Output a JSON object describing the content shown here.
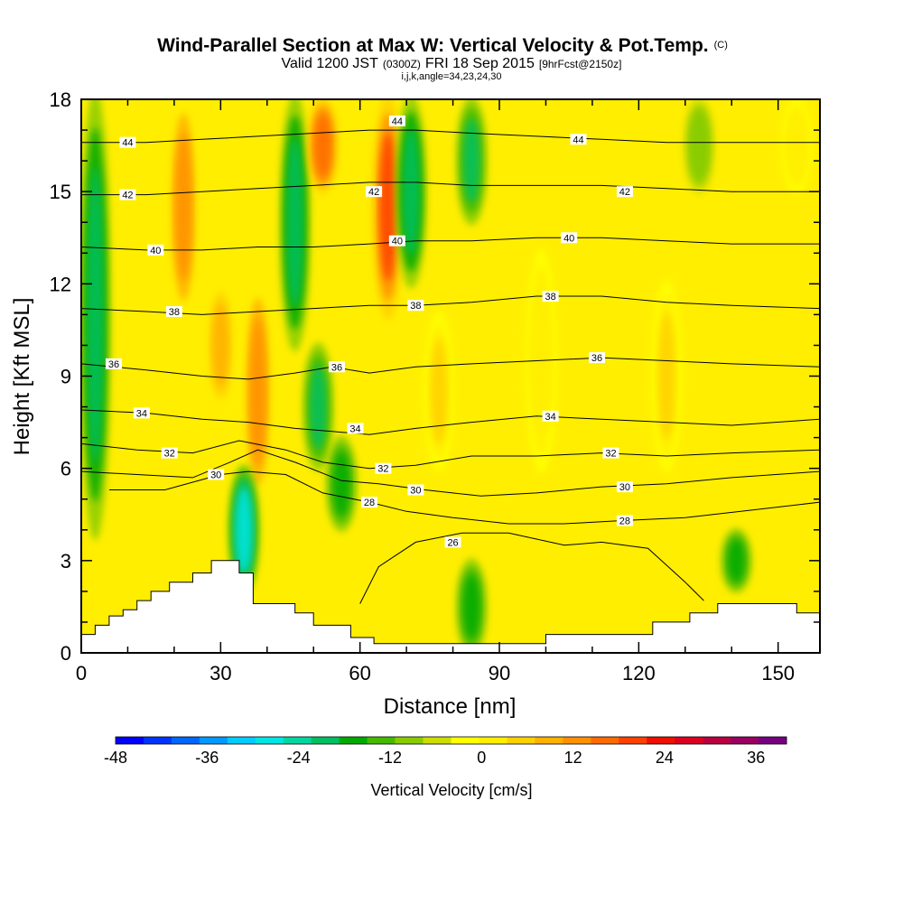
{
  "chart_data": {
    "type": "heatmap",
    "title": "Wind-Parallel Section at Max W: Vertical Velocity & Pot.Temp.",
    "title_mark": "(C)",
    "subtitle": {
      "valid": "Valid 1200 JST",
      "utc": "(0300Z)",
      "date": "FRI 18 Sep 2015",
      "forecast": "[9hrFcst@2150z]",
      "params": "i,j,k,angle=34,23,24,30"
    },
    "xlabel": "Distance [nm]",
    "ylabel": "Height [Kft MSL]",
    "xlim": [
      0,
      159
    ],
    "ylim": [
      0,
      18
    ],
    "x_ticks": [
      0,
      30,
      60,
      90,
      120,
      150
    ],
    "y_ticks": [
      0,
      3,
      6,
      9,
      12,
      15,
      18
    ],
    "colorbar": {
      "title": "Vertical Velocity [cm/s]",
      "min": -48,
      "max": 40,
      "step": 4,
      "tick_values": [
        -48,
        -36,
        -24,
        -12,
        0,
        12,
        24,
        36
      ],
      "colors": [
        "#0000ff",
        "#0033ff",
        "#0066ff",
        "#0099ff",
        "#00ccff",
        "#00e5e5",
        "#00d7a0",
        "#00c060",
        "#00aa00",
        "#44bb00",
        "#88cc00",
        "#ccdd00",
        "#ffff00",
        "#ffee00",
        "#ffd000",
        "#ffb000",
        "#ff9000",
        "#ff6a00",
        "#ff4000",
        "#ee1000",
        "#dd0020",
        "#bb0040",
        "#990060",
        "#770080"
      ]
    },
    "velocity_features": [
      {
        "x": 3,
        "z0": 4,
        "z1": 18,
        "w": -20
      },
      {
        "x": 22,
        "z0": 11,
        "z1": 18,
        "w": 22
      },
      {
        "x": 30,
        "z0": 8,
        "z1": 12,
        "w": 14
      },
      {
        "x": 38,
        "z0": 5,
        "z1": 12,
        "w": 20
      },
      {
        "x": 35,
        "z0": 2,
        "z1": 6,
        "w": -30
      },
      {
        "x": 46,
        "z0": 10,
        "z1": 18,
        "w": -22
      },
      {
        "x": 51,
        "z0": 6,
        "z1": 10,
        "w": -18
      },
      {
        "x": 52,
        "z0": 15,
        "z1": 18,
        "w": 26
      },
      {
        "x": 56,
        "z0": 4,
        "z1": 7,
        "w": -16
      },
      {
        "x": 66,
        "z0": 11,
        "z1": 18,
        "w": 30
      },
      {
        "x": 71,
        "z0": 12,
        "z1": 18,
        "w": -20
      },
      {
        "x": 77,
        "z0": 6,
        "z1": 11,
        "w": 10
      },
      {
        "x": 84,
        "z0": 0,
        "z1": 3,
        "w": -16
      },
      {
        "x": 84,
        "z0": 14,
        "z1": 18,
        "w": -18
      },
      {
        "x": 99,
        "z0": 6,
        "z1": 13,
        "w": 8
      },
      {
        "x": 126,
        "z0": 6,
        "z1": 12,
        "w": 10
      },
      {
        "x": 133,
        "z0": 15,
        "z1": 18,
        "w": -8
      },
      {
        "x": 141,
        "z0": 2,
        "z1": 4,
        "w": -14
      },
      {
        "x": 154,
        "z0": 15,
        "z1": 18,
        "w": 8
      }
    ],
    "theta_contours": [
      {
        "label": "26",
        "points": [
          [
            60,
            1.6
          ],
          [
            64,
            2.8
          ],
          [
            72,
            3.6
          ],
          [
            82,
            3.9
          ],
          [
            92,
            3.9
          ],
          [
            104,
            3.5
          ],
          [
            112,
            3.6
          ],
          [
            122,
            3.4
          ],
          [
            130,
            2.3
          ],
          [
            134,
            1.7
          ]
        ]
      },
      {
        "label": "28",
        "points": [
          [
            6,
            5.3
          ],
          [
            18,
            5.3
          ],
          [
            30,
            5.8
          ],
          [
            36,
            5.9
          ],
          [
            44,
            5.8
          ],
          [
            52,
            5.2
          ],
          [
            62,
            4.9
          ],
          [
            70,
            4.6
          ],
          [
            80,
            4.4
          ],
          [
            92,
            4.2
          ],
          [
            104,
            4.2
          ],
          [
            116,
            4.3
          ],
          [
            130,
            4.4
          ],
          [
            142,
            4.6
          ],
          [
            159,
            4.9
          ]
        ]
      },
      {
        "label": "30",
        "points": [
          [
            0,
            5.9
          ],
          [
            12,
            5.8
          ],
          [
            24,
            5.7
          ],
          [
            32,
            6.2
          ],
          [
            38,
            6.6
          ],
          [
            46,
            6.2
          ],
          [
            56,
            5.6
          ],
          [
            64,
            5.5
          ],
          [
            74,
            5.3
          ],
          [
            86,
            5.1
          ],
          [
            98,
            5.2
          ],
          [
            112,
            5.4
          ],
          [
            126,
            5.5
          ],
          [
            140,
            5.7
          ],
          [
            159,
            5.9
          ]
        ]
      },
      {
        "label": "32",
        "points": [
          [
            0,
            6.8
          ],
          [
            12,
            6.6
          ],
          [
            24,
            6.5
          ],
          [
            34,
            6.9
          ],
          [
            44,
            6.6
          ],
          [
            52,
            6.2
          ],
          [
            62,
            6.0
          ],
          [
            72,
            6.1
          ],
          [
            84,
            6.4
          ],
          [
            98,
            6.4
          ],
          [
            112,
            6.5
          ],
          [
            126,
            6.4
          ],
          [
            140,
            6.5
          ],
          [
            159,
            6.6
          ]
        ]
      },
      {
        "label": "34",
        "points": [
          [
            0,
            7.9
          ],
          [
            14,
            7.8
          ],
          [
            26,
            7.6
          ],
          [
            36,
            7.5
          ],
          [
            46,
            7.3
          ],
          [
            54,
            7.2
          ],
          [
            62,
            7.1
          ],
          [
            72,
            7.3
          ],
          [
            84,
            7.5
          ],
          [
            98,
            7.7
          ],
          [
            112,
            7.6
          ],
          [
            126,
            7.5
          ],
          [
            140,
            7.4
          ],
          [
            159,
            7.6
          ]
        ]
      },
      {
        "label": "36",
        "points": [
          [
            0,
            9.4
          ],
          [
            14,
            9.2
          ],
          [
            26,
            9.0
          ],
          [
            36,
            8.9
          ],
          [
            46,
            9.1
          ],
          [
            54,
            9.3
          ],
          [
            62,
            9.1
          ],
          [
            72,
            9.3
          ],
          [
            84,
            9.4
          ],
          [
            98,
            9.5
          ],
          [
            112,
            9.6
          ],
          [
            126,
            9.5
          ],
          [
            140,
            9.4
          ],
          [
            159,
            9.3
          ]
        ]
      },
      {
        "label": "38",
        "points": [
          [
            0,
            11.2
          ],
          [
            14,
            11.1
          ],
          [
            26,
            11.0
          ],
          [
            38,
            11.1
          ],
          [
            50,
            11.2
          ],
          [
            62,
            11.3
          ],
          [
            72,
            11.3
          ],
          [
            84,
            11.4
          ],
          [
            98,
            11.6
          ],
          [
            112,
            11.6
          ],
          [
            126,
            11.4
          ],
          [
            140,
            11.3
          ],
          [
            159,
            11.2
          ]
        ]
      },
      {
        "label": "40",
        "points": [
          [
            0,
            13.2
          ],
          [
            14,
            13.1
          ],
          [
            26,
            13.1
          ],
          [
            38,
            13.2
          ],
          [
            50,
            13.2
          ],
          [
            62,
            13.3
          ],
          [
            72,
            13.4
          ],
          [
            84,
            13.4
          ],
          [
            98,
            13.5
          ],
          [
            112,
            13.5
          ],
          [
            126,
            13.4
          ],
          [
            140,
            13.3
          ],
          [
            159,
            13.3
          ]
        ]
      },
      {
        "label": "42",
        "points": [
          [
            0,
            14.9
          ],
          [
            14,
            14.9
          ],
          [
            26,
            15.0
          ],
          [
            38,
            15.1
          ],
          [
            50,
            15.2
          ],
          [
            62,
            15.3
          ],
          [
            72,
            15.3
          ],
          [
            84,
            15.2
          ],
          [
            98,
            15.2
          ],
          [
            112,
            15.2
          ],
          [
            126,
            15.1
          ],
          [
            140,
            15.0
          ],
          [
            159,
            15.0
          ]
        ]
      },
      {
        "label": "44",
        "points": [
          [
            0,
            16.6
          ],
          [
            14,
            16.6
          ],
          [
            26,
            16.7
          ],
          [
            38,
            16.8
          ],
          [
            50,
            16.9
          ],
          [
            62,
            17.0
          ],
          [
            72,
            17.0
          ],
          [
            84,
            16.9
          ],
          [
            98,
            16.8
          ],
          [
            112,
            16.7
          ],
          [
            126,
            16.6
          ],
          [
            140,
            16.6
          ],
          [
            159,
            16.6
          ]
        ]
      }
    ],
    "theta_label_positions": [
      {
        "label": "44",
        "x": 10,
        "z": 16.6
      },
      {
        "label": "44",
        "x": 68,
        "z": 17.3
      },
      {
        "label": "44",
        "x": 107,
        "z": 16.7
      },
      {
        "label": "42",
        "x": 10,
        "z": 14.9
      },
      {
        "label": "42",
        "x": 63,
        "z": 15.0
      },
      {
        "label": "42",
        "x": 117,
        "z": 15.0
      },
      {
        "label": "40",
        "x": 16,
        "z": 13.1
      },
      {
        "label": "40",
        "x": 68,
        "z": 13.4
      },
      {
        "label": "40",
        "x": 105,
        "z": 13.5
      },
      {
        "label": "38",
        "x": 20,
        "z": 11.1
      },
      {
        "label": "38",
        "x": 72,
        "z": 11.3
      },
      {
        "label": "38",
        "x": 101,
        "z": 11.6
      },
      {
        "label": "36",
        "x": 7,
        "z": 9.4
      },
      {
        "label": "36",
        "x": 55,
        "z": 9.3
      },
      {
        "label": "36",
        "x": 111,
        "z": 9.6
      },
      {
        "label": "34",
        "x": 13,
        "z": 7.8
      },
      {
        "label": "34",
        "x": 59,
        "z": 7.3
      },
      {
        "label": "34",
        "x": 101,
        "z": 7.7
      },
      {
        "label": "32",
        "x": 19,
        "z": 6.5
      },
      {
        "label": "32",
        "x": 65,
        "z": 6.0
      },
      {
        "label": "32",
        "x": 114,
        "z": 6.5
      },
      {
        "label": "30",
        "x": 29,
        "z": 5.8
      },
      {
        "label": "30",
        "x": 72,
        "z": 5.3
      },
      {
        "label": "30",
        "x": 117,
        "z": 5.4
      },
      {
        "label": "28",
        "x": 62,
        "z": 4.9
      },
      {
        "label": "28",
        "x": 117,
        "z": 4.3
      },
      {
        "label": "26",
        "x": 80,
        "z": 3.6
      }
    ],
    "terrain": [
      [
        0,
        0.6
      ],
      [
        3,
        0.6
      ],
      [
        3,
        0.9
      ],
      [
        6,
        0.9
      ],
      [
        6,
        1.2
      ],
      [
        9,
        1.2
      ],
      [
        9,
        1.4
      ],
      [
        12,
        1.4
      ],
      [
        12,
        1.7
      ],
      [
        15,
        1.7
      ],
      [
        15,
        2.0
      ],
      [
        19,
        2.0
      ],
      [
        19,
        2.3
      ],
      [
        24,
        2.3
      ],
      [
        24,
        2.6
      ],
      [
        28,
        2.6
      ],
      [
        28,
        3.0
      ],
      [
        34,
        3.0
      ],
      [
        34,
        2.6
      ],
      [
        37,
        2.6
      ],
      [
        37,
        1.6
      ],
      [
        46,
        1.6
      ],
      [
        46,
        1.3
      ],
      [
        50,
        1.3
      ],
      [
        50,
        0.9
      ],
      [
        58,
        0.9
      ],
      [
        58,
        0.5
      ],
      [
        63,
        0.5
      ],
      [
        63,
        0.3
      ],
      [
        100,
        0.3
      ],
      [
        100,
        0.6
      ],
      [
        123,
        0.6
      ],
      [
        123,
        1.0
      ],
      [
        131,
        1.0
      ],
      [
        131,
        1.3
      ],
      [
        137,
        1.3
      ],
      [
        137,
        1.6
      ],
      [
        154,
        1.6
      ],
      [
        154,
        1.3
      ],
      [
        159,
        1.3
      ]
    ]
  }
}
